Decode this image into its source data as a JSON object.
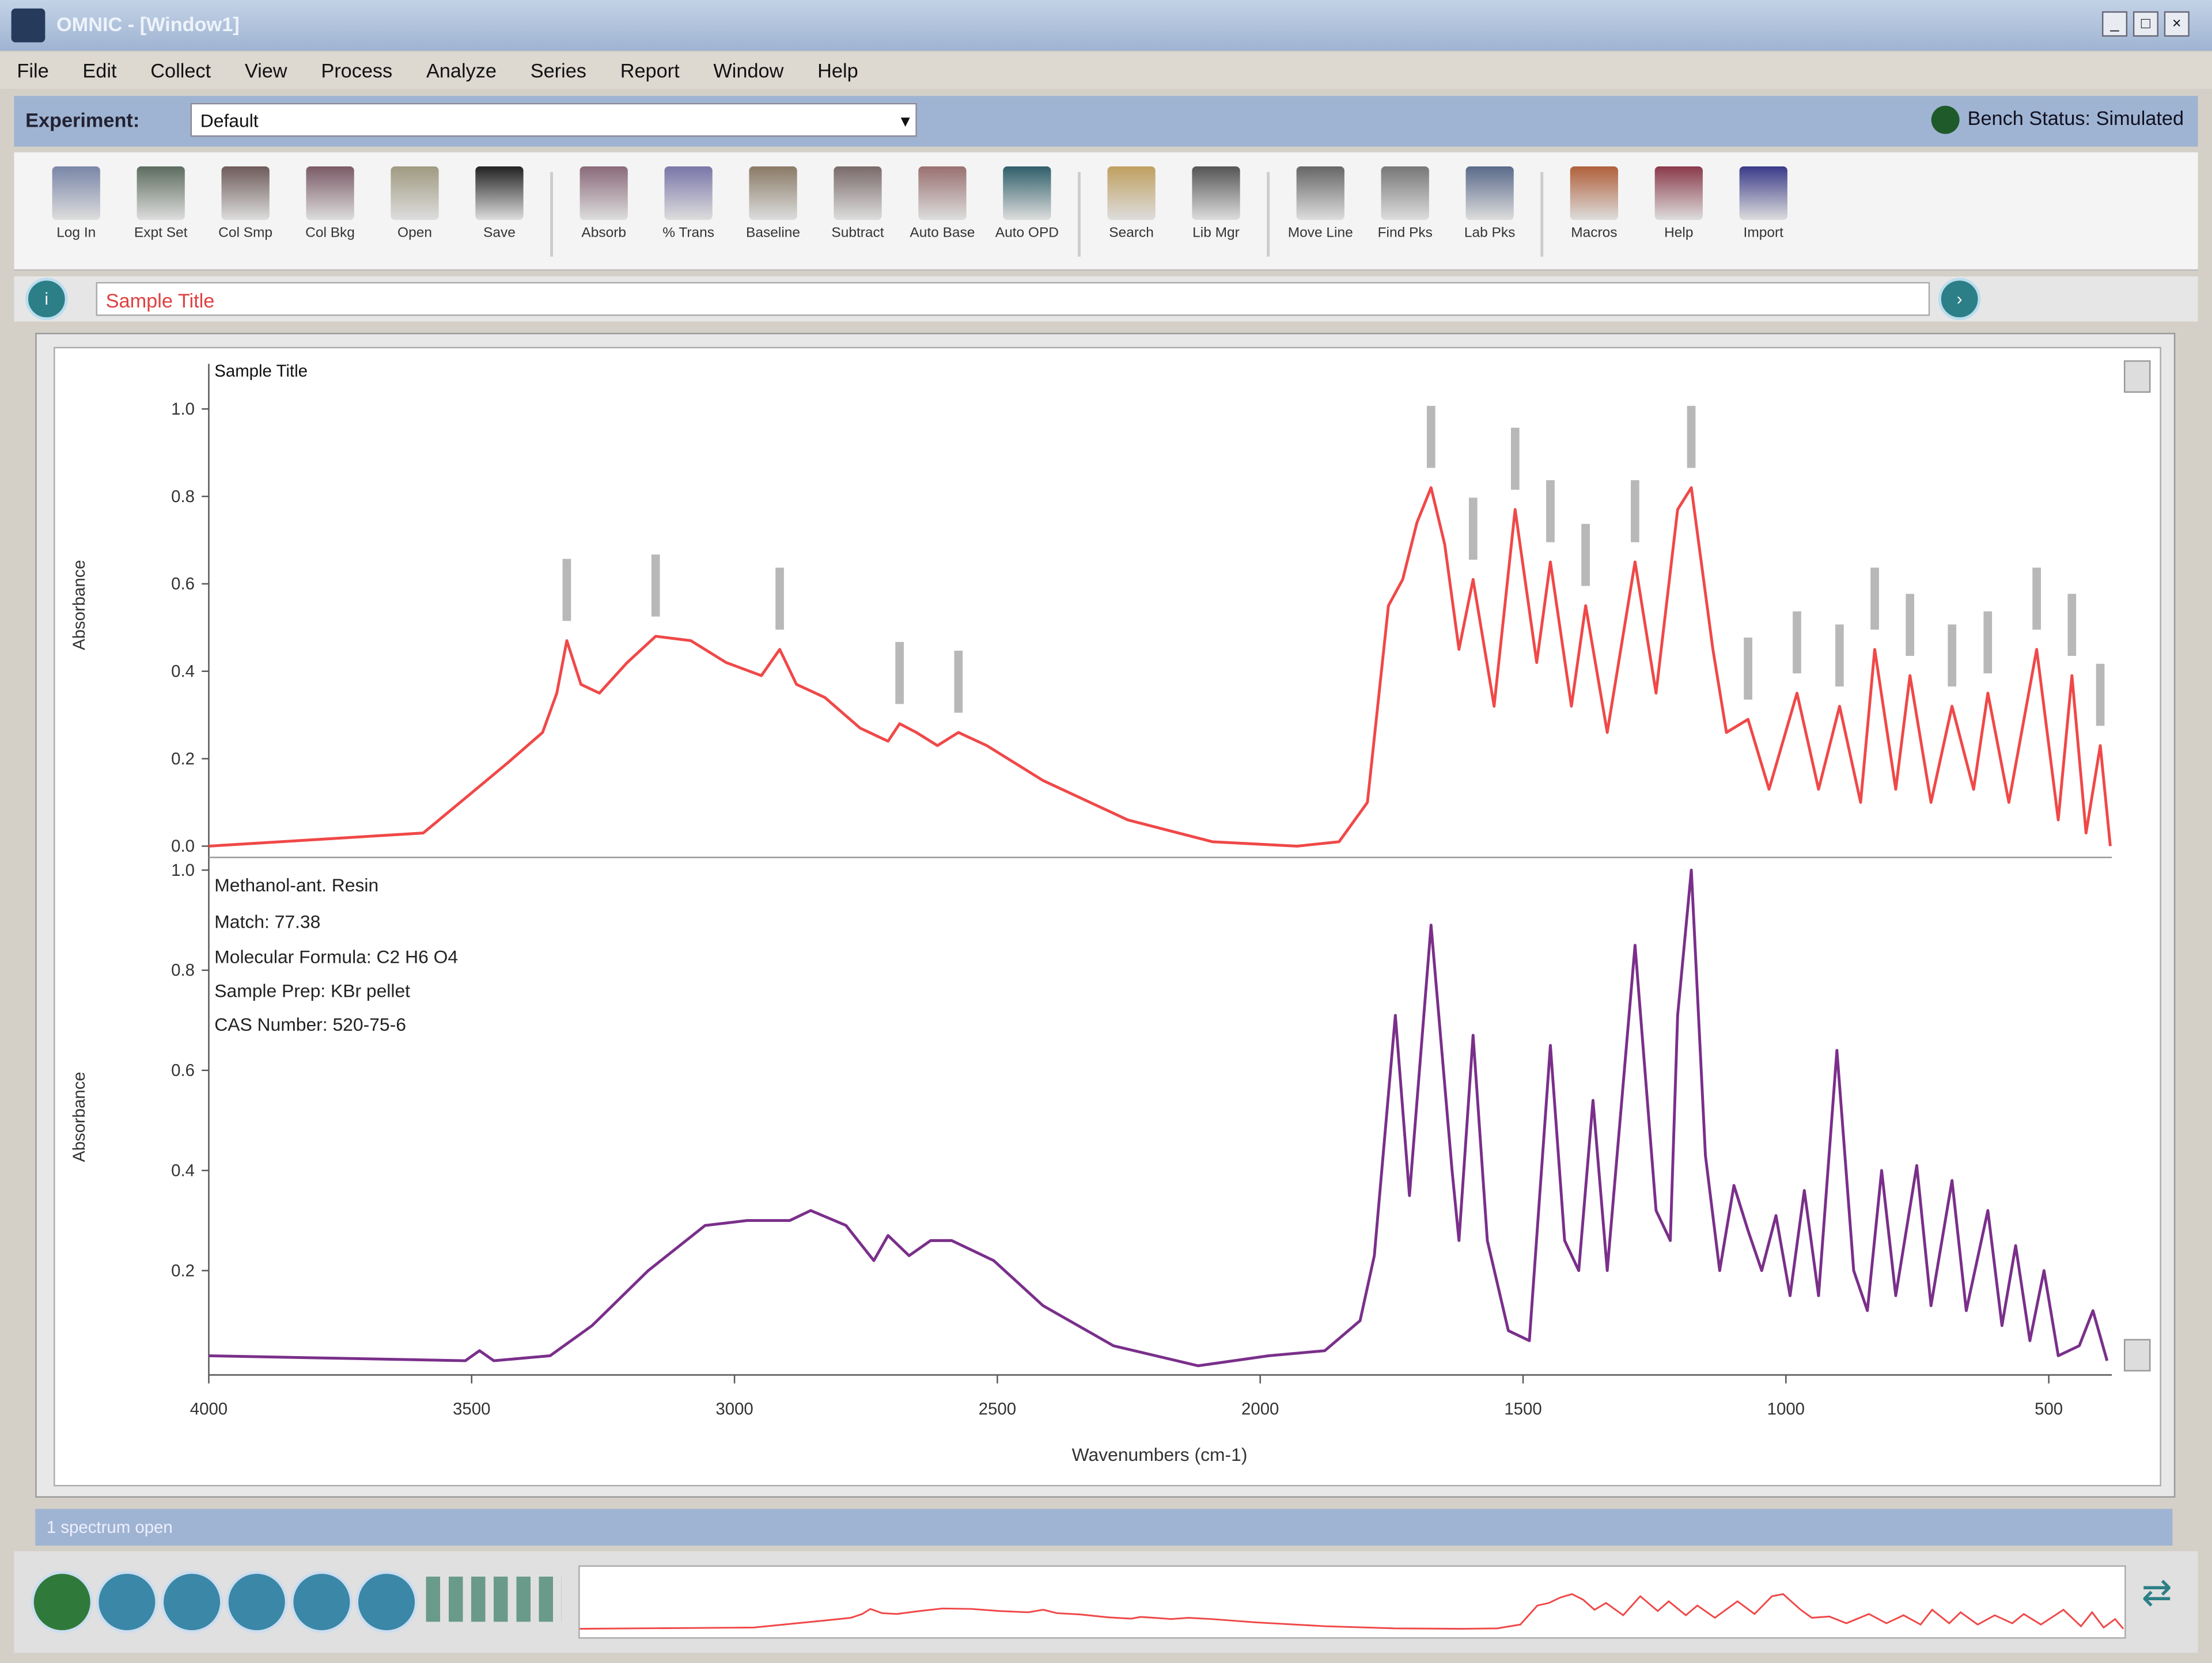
{
  "window": {
    "title": "OMNIC - [Window1]"
  },
  "menu": [
    "File",
    "Edit",
    "Collect",
    "View",
    "Process",
    "Analyze",
    "Series",
    "Report",
    "Window",
    "Help"
  ],
  "experiment": {
    "label": "Experiment:",
    "selected": "Default",
    "bench_status": "Bench Status: Simulated"
  },
  "toolbar": [
    {
      "label": "Log In",
      "color": "#7a86a8"
    },
    {
      "label": "Expt Set",
      "color": "#5d6c5e"
    },
    {
      "label": "Col Smp",
      "color": "#6e5a5a"
    },
    {
      "label": "Col Bkg",
      "color": "#7a5a66"
    },
    {
      "label": "Open",
      "color": "#a09a80"
    },
    {
      "label": "Save",
      "color": "#222"
    },
    {
      "sep": true
    },
    {
      "label": "Absorb",
      "color": "#8a6a7a"
    },
    {
      "label": "% Trans",
      "color": "#7a76a8"
    },
    {
      "label": "Baseline",
      "color": "#8a7a66"
    },
    {
      "label": "Subtract",
      "color": "#7a6a6a"
    },
    {
      "label": "Auto Base",
      "color": "#9a7070"
    },
    {
      "label": "Auto OPD",
      "color": "#2f5f6a"
    },
    {
      "sep": true
    },
    {
      "label": "Search",
      "color": "#c0a060"
    },
    {
      "label": "Lib Mgr",
      "color": "#555"
    },
    {
      "sep": true
    },
    {
      "label": "Move Line",
      "color": "#666"
    },
    {
      "label": "Find Pks",
      "color": "#777"
    },
    {
      "label": "Lab Pks",
      "color": "#5a6a8a"
    },
    {
      "sep": true
    },
    {
      "label": "Macros",
      "color": "#b0603a"
    },
    {
      "label": "Help",
      "color": "#8a3a4a"
    },
    {
      "label": "Import",
      "color": "#3a3a8a"
    }
  ],
  "spectrum_title": "Sample Title",
  "status_text": "1 spectrum open",
  "panels": {
    "top_title": "Sample Title",
    "bottom_info": [
      "Methanol-ant. Resin",
      "Match: 77.38",
      "Molecular Formula: C2 H6 O4",
      "Sample Prep: KBr pellet",
      "CAS Number: 520-75-6"
    ]
  },
  "colors": {
    "top_series": "#f04848",
    "bottom_series": "#7a2f8a",
    "accent": "#9fb4d2"
  },
  "chart_data": {
    "type": "line",
    "xlabel": "Wavenumbers (cm-1)",
    "ylabel": "Absorbance",
    "xlim": [
      4000,
      380
    ],
    "xticks": [
      4000,
      3500,
      3000,
      2500,
      2000,
      1500,
      1000,
      500
    ],
    "grid": false,
    "panels": [
      {
        "ylim": [
          0,
          1.0
        ],
        "yticks": [
          "0.0",
          "0.2",
          "0.4",
          "0.6",
          "0.8",
          "1.0"
        ],
        "x": [
          4000,
          3592,
          3512,
          3432,
          3365,
          3338,
          3319,
          3292,
          3257,
          3204,
          3150,
          3083,
          3016,
          2949,
          2914,
          2882,
          2828,
          2761,
          2708,
          2686,
          2654,
          2614,
          2574,
          2520,
          2413,
          2252,
          2091,
          1930,
          1850,
          1796,
          1756,
          1729,
          1702,
          1675,
          1649,
          1622,
          1595,
          1555,
          1515,
          1474,
          1448,
          1408,
          1381,
          1340,
          1287,
          1247,
          1206,
          1180,
          1139,
          1113,
          1072,
          1032,
          979,
          938,
          898,
          858,
          831,
          791,
          764,
          724,
          684,
          643,
          616,
          576,
          523,
          482,
          456,
          429,
          402,
          383
        ],
        "y": [
          0.0,
          0.03,
          0.11,
          0.19,
          0.26,
          0.35,
          0.47,
          0.37,
          0.35,
          0.42,
          0.48,
          0.47,
          0.42,
          0.39,
          0.45,
          0.37,
          0.34,
          0.27,
          0.24,
          0.28,
          0.26,
          0.23,
          0.26,
          0.23,
          0.15,
          0.06,
          0.01,
          0.0,
          0.01,
          0.1,
          0.55,
          0.61,
          0.74,
          0.82,
          0.69,
          0.45,
          0.61,
          0.32,
          0.77,
          0.42,
          0.65,
          0.32,
          0.55,
          0.26,
          0.65,
          0.35,
          0.77,
          0.82,
          0.45,
          0.26,
          0.29,
          0.13,
          0.35,
          0.13,
          0.32,
          0.1,
          0.45,
          0.13,
          0.39,
          0.1,
          0.32,
          0.13,
          0.35,
          0.1,
          0.45,
          0.06,
          0.39,
          0.03,
          0.23,
          0.0
        ]
      },
      {
        "ylim": [
          0,
          1.0
        ],
        "yticks": [
          "0.2",
          "0.4",
          "0.6",
          "0.8",
          "1.0"
        ],
        "x": [
          4000,
          3512,
          3485,
          3458,
          3351,
          3271,
          3164,
          3056,
          2976,
          2895,
          2855,
          2788,
          2735,
          2708,
          2668,
          2627,
          2587,
          2547,
          2507,
          2413,
          2279,
          2118,
          1984,
          1877,
          1810,
          1783,
          1743,
          1716,
          1675,
          1635,
          1622,
          1595,
          1568,
          1528,
          1488,
          1448,
          1421,
          1394,
          1367,
          1340,
          1287,
          1247,
          1220,
          1206,
          1180,
          1153,
          1126,
          1099,
          1072,
          1046,
          1019,
          992,
          965,
          938,
          903,
          871,
          845,
          818,
          791,
          751,
          724,
          684,
          657,
          616,
          589,
          563,
          536,
          509,
          482,
          442,
          416,
          389
        ],
        "y": [
          0.03,
          0.02,
          0.04,
          0.02,
          0.03,
          0.09,
          0.2,
          0.29,
          0.3,
          0.3,
          0.32,
          0.29,
          0.22,
          0.27,
          0.23,
          0.26,
          0.26,
          0.24,
          0.22,
          0.13,
          0.05,
          0.01,
          0.03,
          0.04,
          0.1,
          0.23,
          0.71,
          0.35,
          0.89,
          0.4,
          0.26,
          0.67,
          0.26,
          0.08,
          0.06,
          0.65,
          0.26,
          0.2,
          0.54,
          0.2,
          0.85,
          0.32,
          0.26,
          0.71,
          1.0,
          0.43,
          0.2,
          0.37,
          0.28,
          0.2,
          0.31,
          0.15,
          0.36,
          0.15,
          0.64,
          0.2,
          0.12,
          0.4,
          0.15,
          0.41,
          0.13,
          0.38,
          0.12,
          0.32,
          0.09,
          0.25,
          0.06,
          0.2,
          0.03,
          0.05,
          0.12,
          0.02
        ]
      }
    ]
  }
}
